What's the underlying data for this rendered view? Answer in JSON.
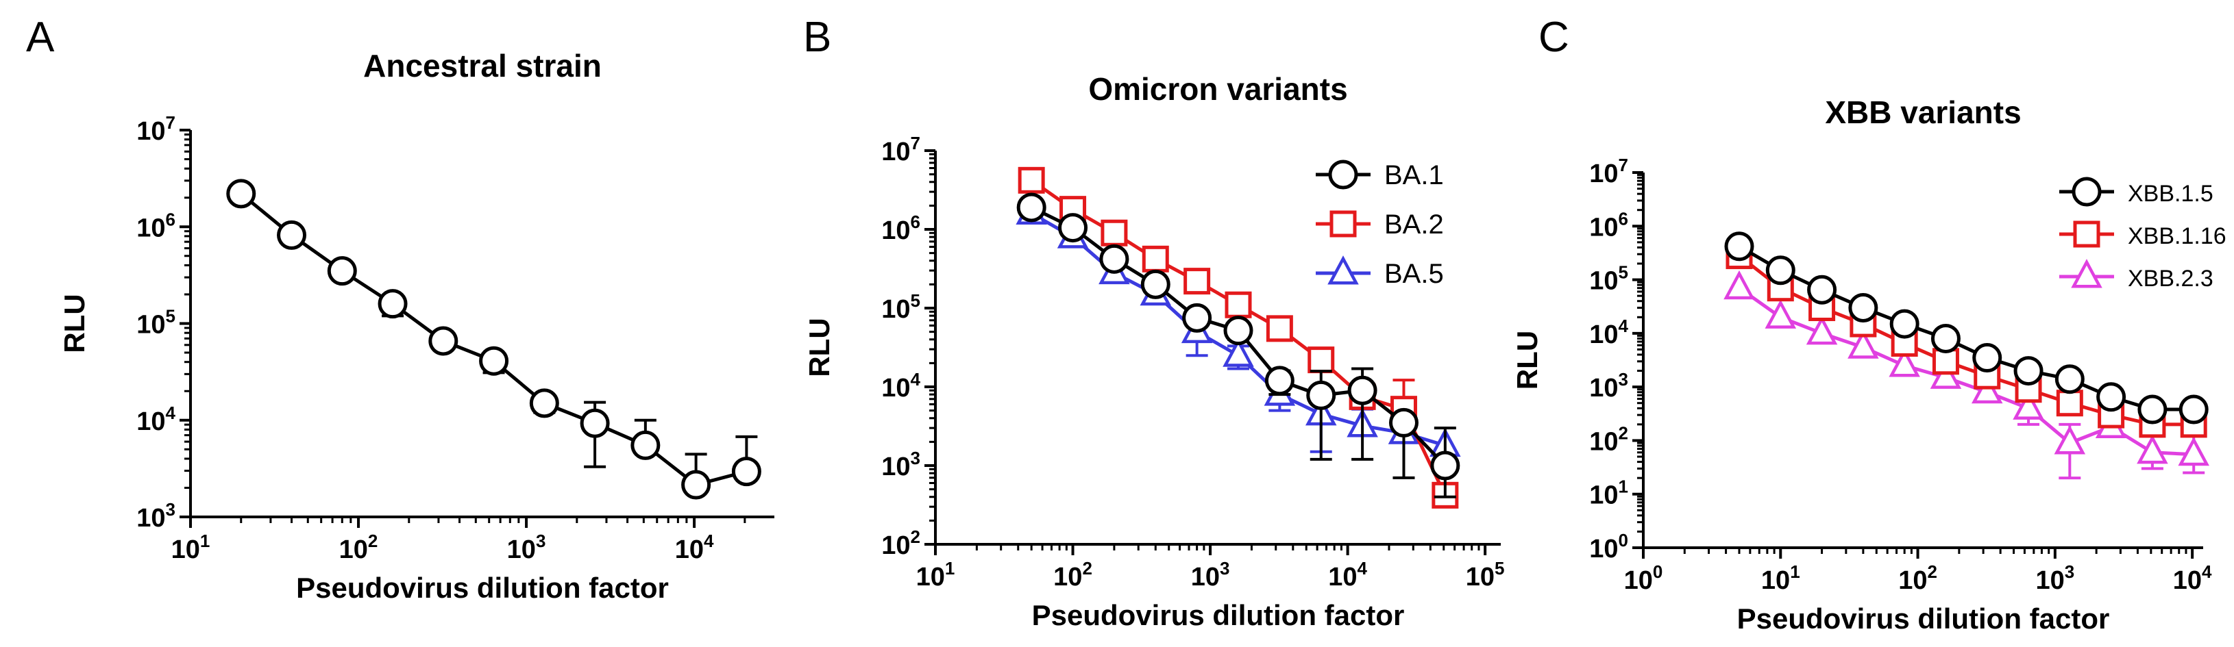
{
  "chart_data": [
    {
      "id": "A",
      "type": "line",
      "panel_label": "A",
      "title": "Ancestral strain",
      "xlabel": "Pseudovirus dilution factor",
      "ylabel": "RLU",
      "xscale": "log",
      "yscale": "log",
      "xlim": [
        10,
        30000
      ],
      "ylim": [
        1000,
        10000000
      ],
      "x_ticks": [
        10,
        100,
        1000,
        10000
      ],
      "y_ticks": [
        1000,
        10000,
        100000,
        1000000,
        10000000
      ],
      "legend": "none",
      "series": [
        {
          "name": "Ancestral strain",
          "color": "#000000",
          "marker": "circle",
          "x": [
            20,
            40,
            80,
            160,
            320,
            640,
            1280,
            2560,
            5120,
            10240,
            20480
          ],
          "y": [
            2200000,
            820000,
            350000,
            160000,
            66000,
            41000,
            15000,
            9300,
            5500,
            2150,
            2950
          ],
          "err_up": [
            0,
            0,
            0,
            0,
            0,
            0,
            0,
            6000,
            4500,
            2300,
            3800
          ],
          "err_down": [
            0,
            0,
            0,
            40000,
            0,
            10000,
            3000,
            6000,
            0,
            0,
            0
          ]
        }
      ]
    },
    {
      "id": "B",
      "type": "line",
      "panel_label": "B",
      "title": "Omicron variants",
      "xlabel": "Pseudovirus dilution factor",
      "ylabel": "RLU",
      "xscale": "log",
      "yscale": "log",
      "xlim": [
        10,
        130000
      ],
      "ylim": [
        100,
        10000000
      ],
      "x_ticks": [
        10,
        100,
        1000,
        10000,
        100000
      ],
      "y_ticks": [
        100,
        1000,
        10000,
        100000,
        1000000,
        10000000
      ],
      "legend": "top-right",
      "series": [
        {
          "name": "BA.5",
          "color": "#3b3bdf",
          "marker": "triangle",
          "x": [
            50,
            100,
            200,
            400,
            800,
            1600,
            3200,
            6400,
            12800,
            25600,
            51200
          ],
          "y": [
            1600000,
            800000,
            280000,
            150000,
            50000,
            25000,
            8000,
            4500,
            3200,
            2600,
            1800
          ],
          "err_up": [
            0,
            0,
            60000,
            0,
            15000,
            8000,
            3000,
            0,
            2000,
            0,
            0
          ],
          "err_down": [
            0,
            0,
            60000,
            0,
            25000,
            8000,
            3000,
            3000,
            0,
            0,
            0
          ]
        },
        {
          "name": "BA.2",
          "color": "#e41a1c",
          "marker": "square",
          "x": [
            50,
            100,
            200,
            400,
            800,
            1600,
            3200,
            6400,
            12800,
            25600,
            51200
          ],
          "y": [
            4200000,
            1800000,
            900000,
            420000,
            220000,
            110000,
            55000,
            22000,
            7500,
            5200,
            420
          ],
          "err_up": [
            0,
            0,
            0,
            0,
            0,
            0,
            15000,
            0,
            0,
            7000,
            0
          ],
          "err_down": [
            0,
            0,
            0,
            0,
            0,
            0,
            10000,
            0,
            0,
            0,
            0
          ]
        },
        {
          "name": "BA.1",
          "color": "#000000",
          "marker": "circle",
          "x": [
            50,
            100,
            200,
            400,
            800,
            1600,
            3200,
            6400,
            12800,
            25600,
            51200
          ],
          "y": [
            1900000,
            1050000,
            420000,
            200000,
            75000,
            52000,
            12000,
            7800,
            9000,
            3500,
            1000
          ],
          "err_up": [
            0,
            0,
            0,
            0,
            10000,
            12000,
            4000,
            8000,
            8000,
            0,
            2000
          ],
          "err_down": [
            0,
            0,
            0,
            0,
            10000,
            12000,
            4000,
            6600,
            7800,
            2800,
            600
          ]
        }
      ]
    },
    {
      "id": "C",
      "type": "line",
      "panel_label": "C",
      "title": "XBB variants",
      "xlabel": "Pseudovirus dilution factor",
      "ylabel": "RLU",
      "xscale": "log",
      "yscale": "log",
      "xlim": [
        1,
        12000
      ],
      "ylim": [
        1,
        10000000
      ],
      "x_ticks": [
        1,
        10,
        100,
        1000,
        10000
      ],
      "y_ticks": [
        1,
        10,
        100,
        1000,
        10000,
        100000,
        1000000,
        10000000
      ],
      "legend": "top-right",
      "series": [
        {
          "name": "XBB.2.3",
          "color": "#e040e0",
          "marker": "triangle",
          "x": [
            5,
            10,
            20,
            40,
            80,
            160,
            320,
            640,
            1280,
            2560,
            5120,
            10240
          ],
          "y": [
            70000,
            20000,
            10000,
            5500,
            2500,
            1500,
            800,
            400,
            90,
            180,
            60,
            55
          ],
          "err_up": [
            0,
            0,
            0,
            0,
            0,
            0,
            0,
            300,
            110,
            0,
            60,
            70
          ],
          "err_down": [
            0,
            0,
            0,
            0,
            0,
            0,
            0,
            200,
            70,
            0,
            30,
            30
          ]
        },
        {
          "name": "XBB.1.16",
          "color": "#e41a1c",
          "marker": "square",
          "x": [
            5,
            10,
            20,
            40,
            80,
            160,
            320,
            640,
            1280,
            2560,
            5120,
            10240
          ],
          "y": [
            280000,
            70000,
            30000,
            15000,
            6500,
            3000,
            1600,
            900,
            500,
            300,
            200,
            200
          ],
          "err_up": [
            0,
            0,
            0,
            0,
            0,
            0,
            0,
            0,
            0,
            0,
            0,
            0
          ],
          "err_down": [
            0,
            0,
            0,
            0,
            0,
            0,
            0,
            0,
            0,
            0,
            0,
            0
          ]
        },
        {
          "name": "XBB.1.5",
          "color": "#000000",
          "marker": "circle",
          "x": [
            5,
            10,
            20,
            40,
            80,
            160,
            320,
            640,
            1280,
            2560,
            5120,
            10240
          ],
          "y": [
            420000,
            150000,
            65000,
            30000,
            15000,
            8000,
            3500,
            2000,
            1400,
            650,
            380,
            380
          ],
          "err_up": [
            0,
            0,
            0,
            0,
            0,
            0,
            0,
            0,
            0,
            0,
            0,
            0
          ],
          "err_down": [
            0,
            0,
            0,
            0,
            0,
            0,
            0,
            0,
            0,
            0,
            0,
            0
          ]
        }
      ]
    }
  ]
}
